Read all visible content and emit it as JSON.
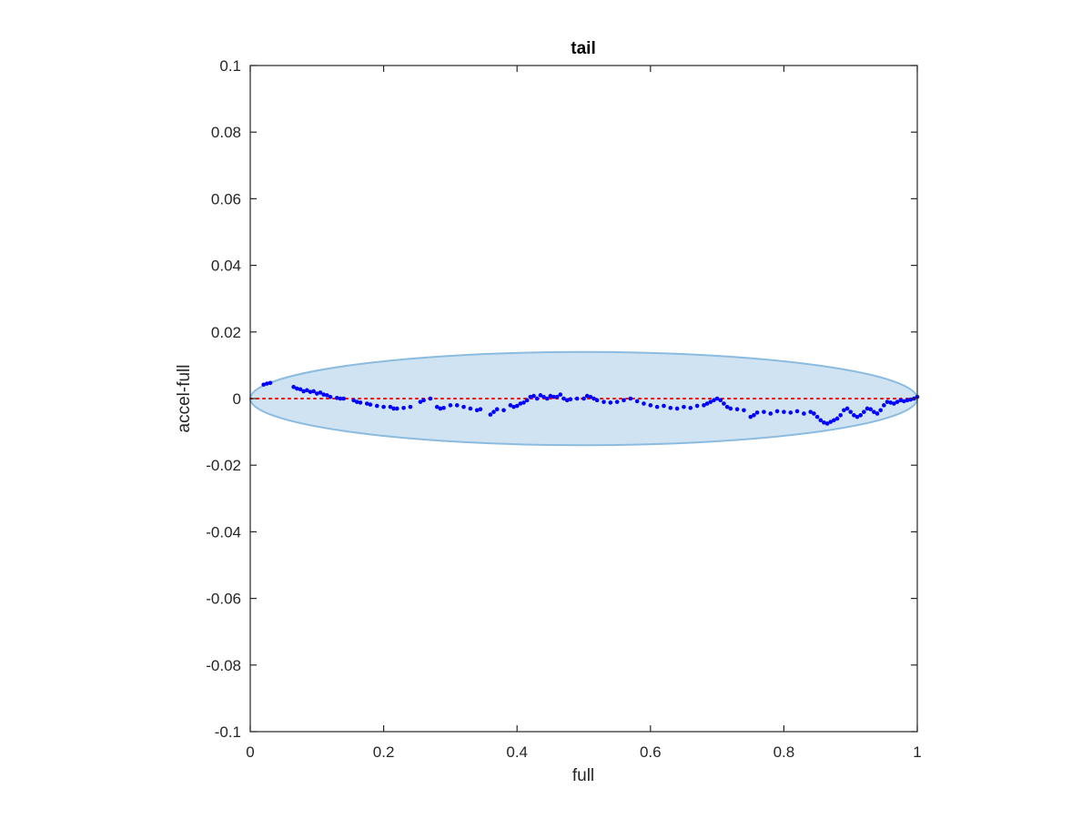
{
  "chart_data": {
    "type": "scatter",
    "title": "tail",
    "xlabel": "full",
    "ylabel": "accel-full",
    "xlim": [
      0,
      1
    ],
    "ylim": [
      -0.1,
      0.1
    ],
    "xticks": [
      "0",
      "0.2",
      "0.4",
      "0.6",
      "0.8",
      "1"
    ],
    "yticks": [
      "0.1",
      "0.08",
      "0.06",
      "0.04",
      "0.02",
      "0",
      "-0.02",
      "-0.04",
      "-0.06",
      "-0.08",
      "-0.1"
    ],
    "grid": false,
    "reference_line": {
      "y": 0,
      "style": "dotted",
      "color": "#ff0000"
    },
    "ellipse": {
      "center": [
        0.5,
        0
      ],
      "rx": 0.5,
      "ry": 0.014,
      "fill": "#cfe3f2",
      "stroke": "#8cbbe0"
    },
    "colors": {
      "points": "#0000ff",
      "axes": "#262626"
    },
    "points": [
      [
        0.02,
        0.0042
      ],
      [
        0.025,
        0.0045
      ],
      [
        0.03,
        0.0047
      ],
      [
        0.065,
        0.0035
      ],
      [
        0.07,
        0.003
      ],
      [
        0.075,
        0.0028
      ],
      [
        0.08,
        0.0022
      ],
      [
        0.085,
        0.0025
      ],
      [
        0.09,
        0.002
      ],
      [
        0.095,
        0.0022
      ],
      [
        0.1,
        0.0015
      ],
      [
        0.105,
        0.0018
      ],
      [
        0.11,
        0.0012
      ],
      [
        0.115,
        0.001
      ],
      [
        0.12,
        0.0005
      ],
      [
        0.13,
        0.0002
      ],
      [
        0.135,
        0.0
      ],
      [
        0.14,
        0.0
      ],
      [
        0.155,
        -0.0005
      ],
      [
        0.16,
        -0.001
      ],
      [
        0.165,
        -0.0012
      ],
      [
        0.175,
        -0.0015
      ],
      [
        0.18,
        -0.0018
      ],
      [
        0.19,
        -0.0022
      ],
      [
        0.2,
        -0.0025
      ],
      [
        0.21,
        -0.0025
      ],
      [
        0.215,
        -0.003
      ],
      [
        0.22,
        -0.003
      ],
      [
        0.23,
        -0.0028
      ],
      [
        0.24,
        -0.0025
      ],
      [
        0.255,
        -0.001
      ],
      [
        0.26,
        -0.0005
      ],
      [
        0.27,
        0.0
      ],
      [
        0.28,
        -0.0025
      ],
      [
        0.285,
        -0.003
      ],
      [
        0.29,
        -0.0028
      ],
      [
        0.3,
        -0.002
      ],
      [
        0.31,
        -0.002
      ],
      [
        0.32,
        -0.0025
      ],
      [
        0.33,
        -0.003
      ],
      [
        0.34,
        -0.0035
      ],
      [
        0.345,
        -0.0032
      ],
      [
        0.36,
        -0.0048
      ],
      [
        0.365,
        -0.004
      ],
      [
        0.37,
        -0.0032
      ],
      [
        0.38,
        -0.0035
      ],
      [
        0.39,
        -0.002
      ],
      [
        0.395,
        -0.0025
      ],
      [
        0.4,
        -0.0022
      ],
      [
        0.405,
        -0.0015
      ],
      [
        0.41,
        -0.0012
      ],
      [
        0.415,
        -0.0005
      ],
      [
        0.42,
        0.0005
      ],
      [
        0.425,
        0.0008
      ],
      [
        0.43,
        0.0
      ],
      [
        0.435,
        0.001
      ],
      [
        0.44,
        0.0005
      ],
      [
        0.445,
        0.0
      ],
      [
        0.45,
        0.0008
      ],
      [
        0.455,
        0.0005
      ],
      [
        0.46,
        0.0005
      ],
      [
        0.465,
        0.0012
      ],
      [
        0.47,
        0.0
      ],
      [
        0.475,
        -0.0005
      ],
      [
        0.48,
        -0.0002
      ],
      [
        0.49,
        0.0
      ],
      [
        0.5,
        0.0
      ],
      [
        0.505,
        0.0008
      ],
      [
        0.51,
        0.0005
      ],
      [
        0.515,
        0.0
      ],
      [
        0.52,
        -0.0005
      ],
      [
        0.53,
        -0.001
      ],
      [
        0.54,
        -0.0012
      ],
      [
        0.55,
        -0.001
      ],
      [
        0.56,
        -0.0005
      ],
      [
        0.57,
        0.0
      ],
      [
        0.58,
        -0.0008
      ],
      [
        0.59,
        -0.0015
      ],
      [
        0.6,
        -0.002
      ],
      [
        0.61,
        -0.0025
      ],
      [
        0.62,
        -0.0022
      ],
      [
        0.63,
        -0.0028
      ],
      [
        0.64,
        -0.003
      ],
      [
        0.65,
        -0.0025
      ],
      [
        0.66,
        -0.0028
      ],
      [
        0.67,
        -0.0022
      ],
      [
        0.68,
        -0.002
      ],
      [
        0.685,
        -0.0015
      ],
      [
        0.69,
        -0.001
      ],
      [
        0.695,
        -0.0005
      ],
      [
        0.7,
        0.0
      ],
      [
        0.705,
        -0.0005
      ],
      [
        0.71,
        -0.0015
      ],
      [
        0.715,
        -0.0025
      ],
      [
        0.72,
        -0.003
      ],
      [
        0.73,
        -0.0032
      ],
      [
        0.74,
        -0.0035
      ],
      [
        0.75,
        -0.0055
      ],
      [
        0.755,
        -0.005
      ],
      [
        0.76,
        -0.0042
      ],
      [
        0.77,
        -0.004
      ],
      [
        0.78,
        -0.0045
      ],
      [
        0.79,
        -0.0038
      ],
      [
        0.8,
        -0.004
      ],
      [
        0.81,
        -0.0042
      ],
      [
        0.82,
        -0.0038
      ],
      [
        0.83,
        -0.0045
      ],
      [
        0.84,
        -0.004
      ],
      [
        0.845,
        -0.0045
      ],
      [
        0.85,
        -0.0055
      ],
      [
        0.855,
        -0.0065
      ],
      [
        0.86,
        -0.0072
      ],
      [
        0.865,
        -0.0075
      ],
      [
        0.87,
        -0.007
      ],
      [
        0.875,
        -0.0065
      ],
      [
        0.88,
        -0.006
      ],
      [
        0.885,
        -0.005
      ],
      [
        0.89,
        -0.0035
      ],
      [
        0.895,
        -0.003
      ],
      [
        0.9,
        -0.004
      ],
      [
        0.905,
        -0.005
      ],
      [
        0.91,
        -0.0055
      ],
      [
        0.915,
        -0.005
      ],
      [
        0.92,
        -0.004
      ],
      [
        0.925,
        -0.003
      ],
      [
        0.93,
        -0.0032
      ],
      [
        0.935,
        -0.004
      ],
      [
        0.94,
        -0.0045
      ],
      [
        0.945,
        -0.0035
      ],
      [
        0.95,
        -0.002
      ],
      [
        0.955,
        -0.001
      ],
      [
        0.96,
        -0.0012
      ],
      [
        0.965,
        -0.0015
      ],
      [
        0.97,
        -0.001
      ],
      [
        0.975,
        -0.0005
      ],
      [
        0.98,
        -0.0008
      ],
      [
        0.985,
        -0.0005
      ],
      [
        0.99,
        -0.0003
      ],
      [
        0.995,
        0.0
      ],
      [
        1.0,
        0.0005
      ]
    ]
  }
}
